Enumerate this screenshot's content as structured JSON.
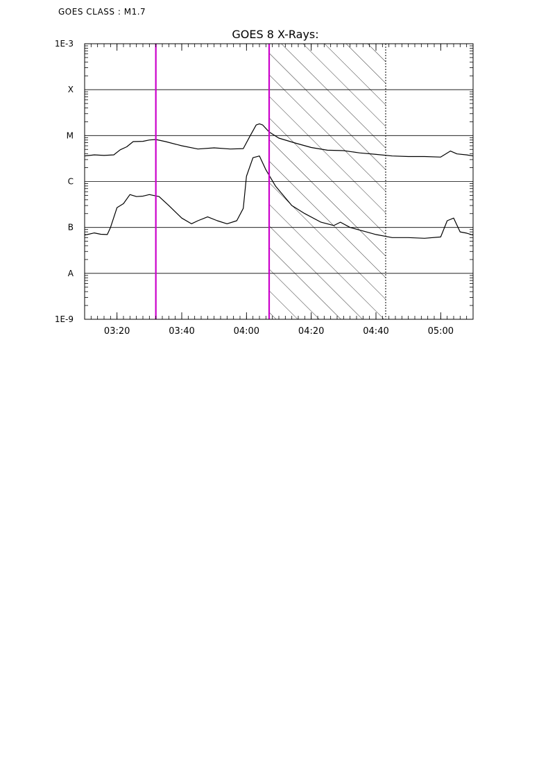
{
  "header": {
    "class_label": "GOES CLASS : M1.7"
  },
  "colors": {
    "marker": "#cc00cc",
    "axis": "#000000",
    "background": "#ffffff"
  },
  "chart_data": {
    "type": "line",
    "title": "GOES 8 X-Rays:",
    "xlabel": "",
    "ylabel": "",
    "x_unit": "time (HH:MM)",
    "xlim": [
      "03:10",
      "05:10"
    ],
    "y_scale": "log",
    "ylim": [
      1e-09,
      0.001
    ],
    "grid": "horizontal",
    "y_ticks": [
      {
        "value": 1e-09,
        "label": "1E-9"
      },
      {
        "value": 1e-08,
        "label": "A"
      },
      {
        "value": 1e-07,
        "label": "B"
      },
      {
        "value": 1e-06,
        "label": "C"
      },
      {
        "value": 1e-05,
        "label": "M"
      },
      {
        "value": 0.0001,
        "label": "X"
      },
      {
        "value": 0.001,
        "label": "1E-3"
      }
    ],
    "x_ticks": [
      "03:20",
      "03:40",
      "04:00",
      "04:20",
      "04:40",
      "05:00"
    ],
    "series": [
      {
        "points": [
          [
            "03:10",
            3.6e-06
          ],
          [
            "03:13",
            3.8e-06
          ],
          [
            "03:16",
            3.7e-06
          ],
          [
            "03:19",
            3.8e-06
          ],
          [
            "03:21",
            4.9e-06
          ],
          [
            "03:23",
            5.7e-06
          ],
          [
            "03:25",
            7.4e-06
          ],
          [
            "03:28",
            7.5e-06
          ],
          [
            "03:30",
            8e-06
          ],
          [
            "03:32",
            8.2e-06
          ],
          [
            "03:35",
            7.4e-06
          ],
          [
            "03:40",
            6e-06
          ],
          [
            "03:45",
            5.1e-06
          ],
          [
            "03:50",
            5.4e-06
          ],
          [
            "03:55",
            5.1e-06
          ],
          [
            "03:59",
            5.2e-06
          ],
          [
            "04:01",
            9.5e-06
          ],
          [
            "04:03",
            1.7e-05
          ],
          [
            "04:04",
            1.8e-05
          ],
          [
            "04:05",
            1.7e-05
          ],
          [
            "04:07",
            1.2e-05
          ],
          [
            "04:10",
            8.8e-06
          ],
          [
            "04:15",
            6.9e-06
          ],
          [
            "04:20",
            5.5e-06
          ],
          [
            "04:25",
            4.8e-06
          ],
          [
            "04:30",
            4.7e-06
          ],
          [
            "04:35",
            4.2e-06
          ],
          [
            "04:40",
            3.9e-06
          ],
          [
            "04:45",
            3.6e-06
          ],
          [
            "04:50",
            3.5e-06
          ],
          [
            "04:55",
            3.5e-06
          ],
          [
            "05:00",
            3.4e-06
          ],
          [
            "05:03",
            4.6e-06
          ],
          [
            "05:05",
            4e-06
          ],
          [
            "05:08",
            3.8e-06
          ],
          [
            "05:10",
            3.6e-06
          ]
        ]
      },
      {
        "points": [
          [
            "03:10",
            6.8e-08
          ],
          [
            "03:13",
            7.6e-08
          ],
          [
            "03:15",
            7.1e-08
          ],
          [
            "03:17",
            7e-08
          ],
          [
            "03:18",
            1e-07
          ],
          [
            "03:20",
            2.7e-07
          ],
          [
            "03:22",
            3.3e-07
          ],
          [
            "03:24",
            5.2e-07
          ],
          [
            "03:26",
            4.7e-07
          ],
          [
            "03:28",
            4.8e-07
          ],
          [
            "03:30",
            5.2e-07
          ],
          [
            "03:33",
            4.7e-07
          ],
          [
            "03:36",
            3e-07
          ],
          [
            "03:40",
            1.6e-07
          ],
          [
            "03:43",
            1.2e-07
          ],
          [
            "03:45",
            1.4e-07
          ],
          [
            "03:48",
            1.7e-07
          ],
          [
            "03:51",
            1.4e-07
          ],
          [
            "03:54",
            1.2e-07
          ],
          [
            "03:57",
            1.4e-07
          ],
          [
            "03:59",
            2.6e-07
          ],
          [
            "04:00",
            1.3e-06
          ],
          [
            "04:02",
            3.3e-06
          ],
          [
            "04:04",
            3.6e-06
          ],
          [
            "04:06",
            1.8e-06
          ],
          [
            "04:09",
            7.9e-07
          ],
          [
            "04:14",
            3e-07
          ],
          [
            "04:18",
            2e-07
          ],
          [
            "04:23",
            1.3e-07
          ],
          [
            "04:27",
            1.1e-07
          ],
          [
            "04:29",
            1.3e-07
          ],
          [
            "04:32",
            1e-07
          ],
          [
            "04:37",
            8e-08
          ],
          [
            "04:40",
            7e-08
          ],
          [
            "04:45",
            6e-08
          ],
          [
            "04:50",
            6e-08
          ],
          [
            "04:55",
            5.8e-08
          ],
          [
            "05:00",
            6.2e-08
          ],
          [
            "05:02",
            1.4e-07
          ],
          [
            "05:04",
            1.6e-07
          ],
          [
            "05:06",
            8e-08
          ],
          [
            "05:08",
            7.5e-08
          ],
          [
            "05:10",
            6.8e-08
          ]
        ]
      }
    ],
    "markers": [
      {
        "x": "03:32",
        "style": "solid",
        "color": "#cc00cc"
      },
      {
        "x": "04:07",
        "style": "solid",
        "color": "#cc00cc"
      },
      {
        "x": "04:43",
        "style": "dotted",
        "color": "#000000"
      }
    ],
    "shaded_region": {
      "x_start": "04:07",
      "x_end": "04:43",
      "pattern": "diagonal-hatch"
    }
  }
}
